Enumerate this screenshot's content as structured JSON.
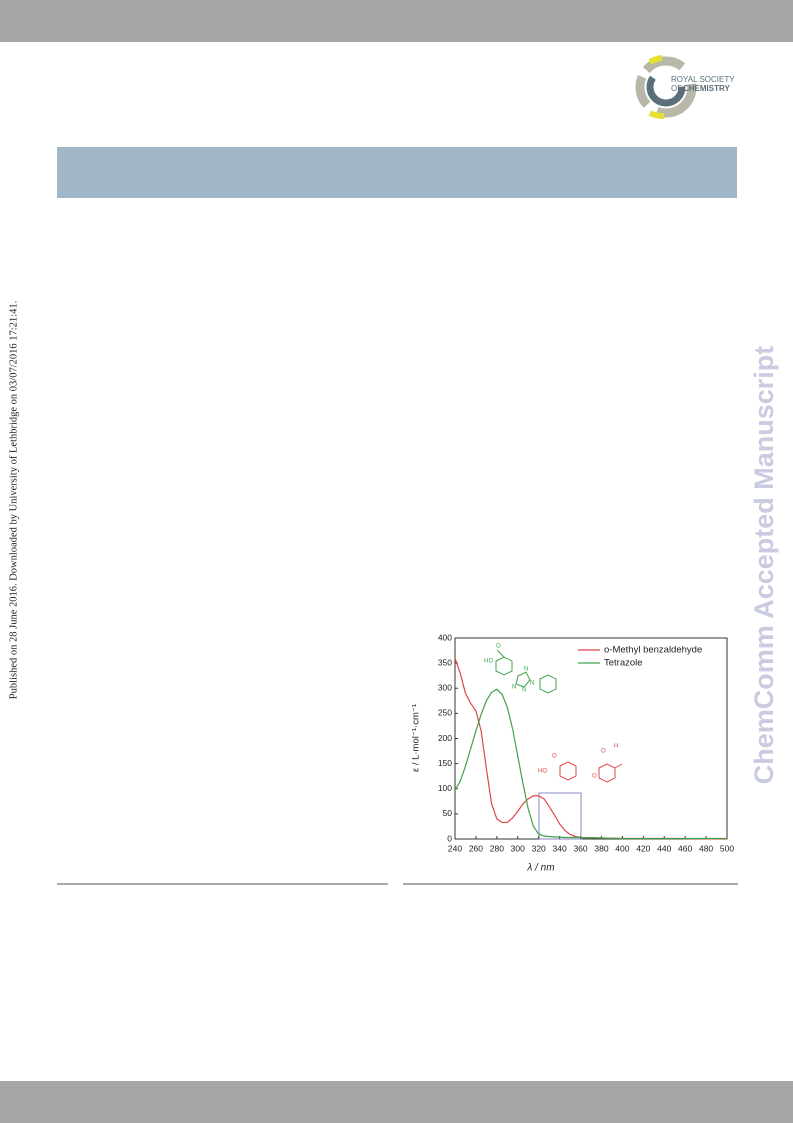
{
  "side_note": "Published on 28 June 2016. Downloaded by University of Lethbridge on 03/07/2016 17:21:41.",
  "watermark": "ChemComm Accepted Manuscript",
  "logo": {
    "line1": "ROYAL SOCIETY",
    "line2": "OF",
    "line3": "CHEMISTRY"
  },
  "structures": {
    "tetrazole": [
      "O",
      "HO",
      "N",
      "N",
      "N",
      "N"
    ],
    "aldehyde": [
      "O",
      "H",
      "HO",
      "O",
      "O"
    ]
  },
  "chart_data": {
    "type": "line",
    "x_label": "λ / nm",
    "y_label": "ε / L·mol⁻¹·cm⁻¹",
    "x": [
      240,
      245,
      250,
      255,
      260,
      265,
      270,
      275,
      280,
      285,
      290,
      295,
      300,
      305,
      310,
      315,
      320,
      325,
      330,
      335,
      340,
      345,
      350,
      355,
      360,
      380,
      400,
      450,
      500
    ],
    "series": [
      {
        "name": "o-Methyl benzaldehyde",
        "color": "#e0454a",
        "values": [
          360,
          330,
          290,
          270,
          255,
          215,
          140,
          70,
          40,
          33,
          33,
          42,
          55,
          70,
          80,
          86,
          86,
          80,
          65,
          48,
          30,
          17,
          9,
          5,
          3,
          2,
          1,
          1,
          0
        ]
      },
      {
        "name": "Tetrazole",
        "color": "#3fa34d",
        "values": [
          97,
          115,
          145,
          180,
          215,
          248,
          275,
          292,
          298,
          288,
          262,
          220,
          165,
          110,
          60,
          25,
          10,
          6,
          5,
          4,
          4,
          3,
          3,
          3,
          3,
          2,
          1,
          1,
          1
        ]
      }
    ],
    "xlim": [
      240,
      500
    ],
    "ylim": [
      0,
      400
    ],
    "xticks": [
      240,
      260,
      280,
      300,
      320,
      340,
      360,
      380,
      400,
      420,
      440,
      460,
      480,
      500
    ],
    "yticks": [
      0,
      50,
      100,
      150,
      200,
      250,
      300,
      350,
      400
    ],
    "legend": "upper right"
  }
}
